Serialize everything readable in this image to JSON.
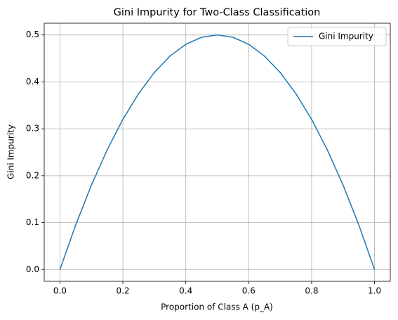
{
  "chart_data": {
    "type": "line",
    "title": "Gini Impurity for Two-Class Classification",
    "x_label": "Proportion of Class A (p_A)",
    "y_label": "Gini Impurity",
    "x": [
      0,
      0.05,
      0.1,
      0.15,
      0.2,
      0.25,
      0.3,
      0.35,
      0.4,
      0.45,
      0.5,
      0.55,
      0.6,
      0.65,
      0.7,
      0.75,
      0.8,
      0.85,
      0.9,
      0.95,
      1
    ],
    "series": [
      {
        "name": "Gini Impurity",
        "color": "#1f77b4",
        "values": [
          0,
          0.095,
          0.18,
          0.255,
          0.32,
          0.375,
          0.42,
          0.455,
          0.48,
          0.495,
          0.5,
          0.495,
          0.48,
          0.455,
          0.42,
          0.375,
          0.32,
          0.255,
          0.18,
          0.095,
          0
        ]
      }
    ],
    "xlim": [
      -0.05,
      1.05
    ],
    "xticks": [
      {
        "value": 0,
        "label": "0.0"
      },
      0.2,
      0.4,
      0.6,
      0.8,
      {
        "value": 1,
        "label": "1.0"
      }
    ],
    "ylim": [
      -0.025,
      0.525
    ],
    "yticks": [
      {
        "value": 0,
        "label": "0.0"
      },
      0.1,
      0.2,
      0.3,
      0.4,
      0.5
    ],
    "grid": true,
    "legend": "upper right"
  }
}
